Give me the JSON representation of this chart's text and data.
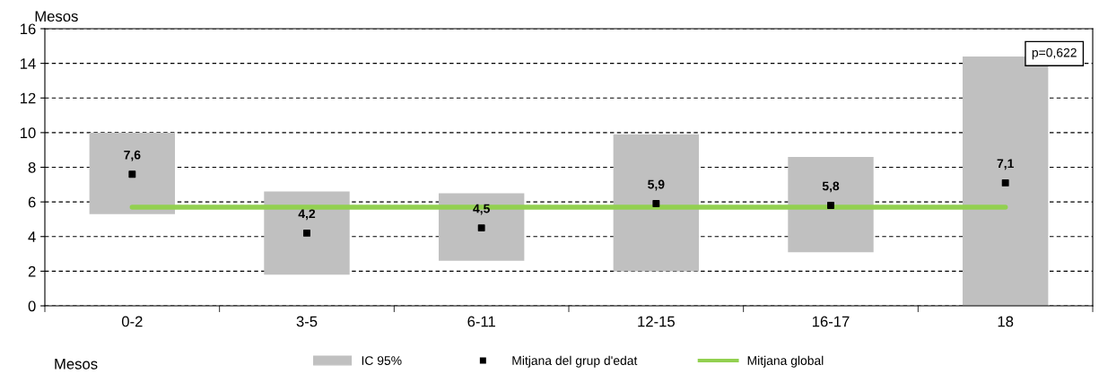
{
  "chart_data": {
    "type": "bar",
    "ylabel": "Mesos",
    "categories": [
      "0-2",
      "3-5",
      "6-11",
      "12-15",
      "16-17",
      "18"
    ],
    "series": [
      {
        "name": "IC 95%",
        "color": "#c0c0c0",
        "base": [
          5.3,
          1.8,
          2.6,
          2.0,
          3.1,
          0
        ],
        "values": [
          4.7,
          4.8,
          3.9,
          7.9,
          5.5,
          14.4
        ]
      },
      {
        "name": "Mitjana del grup d'edat",
        "type": "scatter",
        "color": "#000000",
        "marker": "square",
        "values": [
          7.6,
          4.2,
          4.5,
          5.9,
          5.8,
          7.1
        ],
        "value_labels": [
          "7,6",
          "4,2",
          "4,5",
          "5,9",
          "5,8",
          "7,1"
        ]
      },
      {
        "name": "Mitjana global",
        "type": "line",
        "color": "#92d050",
        "marker": "none",
        "values": [
          5.7,
          5.7,
          5.7,
          5.7,
          5.7,
          5.7
        ]
      }
    ],
    "ylim": [
      0,
      16
    ],
    "yticks": [
      0,
      2,
      4,
      6,
      8,
      10,
      12,
      14,
      16
    ],
    "grid": "y",
    "legend": "bottom",
    "annotations": [
      "p=0,622",
      "Mesos"
    ]
  }
}
